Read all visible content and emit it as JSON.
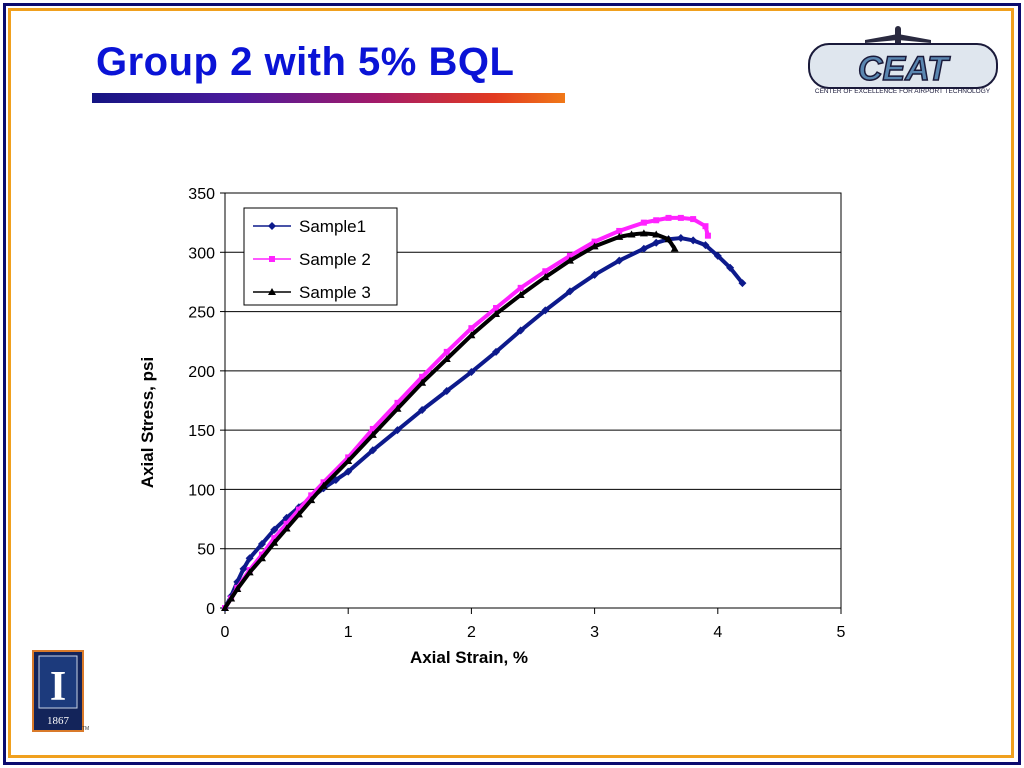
{
  "slide": {
    "title": "Group 2 with 5% BQL",
    "logo_text": "CEAT",
    "logo_caption": "CENTER OF EXCELLENCE FOR AIRPORT TECHNOLOGY",
    "seal_year": "1867",
    "seal_letter": "I",
    "tm": "TM"
  },
  "colors": {
    "title": "#0a13d6",
    "frame_outer": "#0b0b6e",
    "frame_inner": "#f0a01e",
    "sample1": "#0d1a8c",
    "sample2": "#ff22ff",
    "sample3": "#000000"
  },
  "chart_data": {
    "type": "line",
    "xlabel": "Axial Strain, %",
    "ylabel": "Axial Stress, psi",
    "xlim": [
      0,
      5
    ],
    "ylim": [
      0,
      350
    ],
    "xticks": [
      0,
      1,
      2,
      3,
      4,
      5
    ],
    "yticks": [
      0,
      50,
      100,
      150,
      200,
      250,
      300,
      350
    ],
    "grid": "horizontal",
    "legend_position": "top-left",
    "series": [
      {
        "name": "Sample1",
        "marker": "diamond",
        "x": [
          0.0,
          0.05,
          0.1,
          0.15,
          0.2,
          0.3,
          0.4,
          0.5,
          0.6,
          0.7,
          0.8,
          0.9,
          1.0,
          1.2,
          1.4,
          1.6,
          1.8,
          2.0,
          2.2,
          2.4,
          2.6,
          2.8,
          3.0,
          3.2,
          3.4,
          3.5,
          3.6,
          3.7,
          3.8,
          3.9,
          4.0,
          4.1,
          4.2
        ],
        "y": [
          0,
          10,
          22,
          33,
          42,
          54,
          66,
          76,
          85,
          93,
          101,
          108,
          115,
          133,
          150,
          167,
          183,
          199,
          216,
          234,
          251,
          267,
          281,
          293,
          303,
          308,
          311,
          312,
          310,
          306,
          297,
          287,
          274
        ]
      },
      {
        "name": "Sample 2",
        "marker": "square",
        "x": [
          0.0,
          0.05,
          0.1,
          0.2,
          0.3,
          0.4,
          0.5,
          0.6,
          0.7,
          0.8,
          1.0,
          1.2,
          1.4,
          1.6,
          1.8,
          2.0,
          2.2,
          2.4,
          2.6,
          2.8,
          3.0,
          3.2,
          3.4,
          3.5,
          3.6,
          3.7,
          3.8,
          3.9,
          3.92
        ],
        "y": [
          0,
          8,
          17,
          32,
          45,
          59,
          71,
          83,
          95,
          106,
          127,
          151,
          173,
          195,
          216,
          236,
          253,
          270,
          284,
          297,
          309,
          318,
          325,
          327,
          329,
          329,
          328,
          322,
          314
        ]
      },
      {
        "name": "Sample 3",
        "marker": "triangle",
        "x": [
          0.0,
          0.05,
          0.1,
          0.2,
          0.3,
          0.4,
          0.5,
          0.6,
          0.7,
          0.8,
          1.0,
          1.2,
          1.4,
          1.6,
          1.8,
          2.0,
          2.2,
          2.4,
          2.6,
          2.8,
          3.0,
          3.2,
          3.3,
          3.4,
          3.5,
          3.6,
          3.65
        ],
        "y": [
          0,
          8,
          16,
          30,
          42,
          55,
          67,
          79,
          91,
          103,
          124,
          146,
          168,
          190,
          210,
          230,
          248,
          264,
          279,
          293,
          305,
          313,
          315,
          316,
          315,
          311,
          303
        ]
      }
    ]
  }
}
